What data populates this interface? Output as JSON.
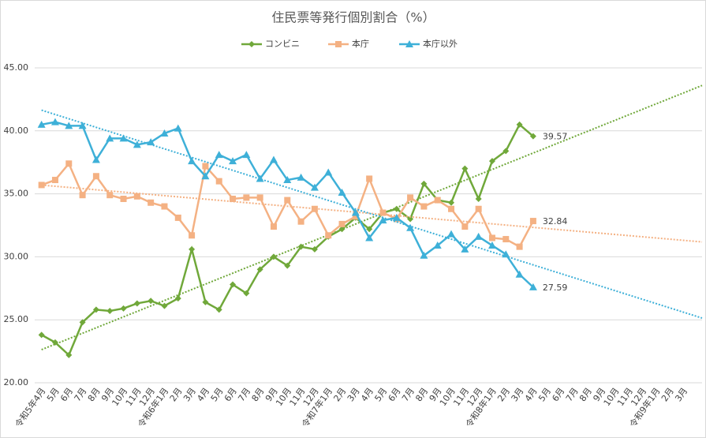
{
  "chart_data": {
    "type": "line",
    "title": "住民票等発行個別割合（%）",
    "categories": [
      "令和5年4月",
      "5月",
      "6月",
      "7月",
      "8月",
      "9月",
      "10月",
      "11月",
      "12月",
      "令和6年1月",
      "2月",
      "3月",
      "4月",
      "5月",
      "6月",
      "7月",
      "8月",
      "9月",
      "10月",
      "11月",
      "12月",
      "令和7年1月",
      "2月",
      "3月",
      "4月",
      "5月",
      "6月",
      "7月",
      "8月",
      "9月",
      "10月",
      "11月",
      "12月",
      "令和8年1月",
      "2月",
      "3月",
      "4月",
      "5月",
      "6月",
      "7月",
      "8月",
      "9月",
      "10月",
      "11月",
      "12月",
      "令和9年1月",
      "2月",
      "3月"
    ],
    "series": [
      {
        "name": "コンビニ",
        "color": "#70a83a",
        "marker": "diamond",
        "values": [
          23.8,
          23.2,
          22.2,
          24.8,
          25.8,
          25.7,
          25.9,
          26.3,
          26.5,
          26.1,
          26.7,
          30.6,
          26.4,
          25.8,
          27.8,
          27.1,
          29.0,
          30.0,
          29.3,
          30.8,
          30.6,
          31.6,
          32.2,
          33.1,
          32.2,
          33.5,
          33.8,
          33.0,
          35.8,
          34.5,
          34.3,
          37.0,
          34.6,
          37.6,
          38.4,
          40.5,
          39.57,
          null,
          null,
          null,
          null,
          null,
          null,
          null,
          null,
          null,
          null,
          null
        ]
      },
      {
        "name": "本庁",
        "color": "#f4b183",
        "marker": "square",
        "values": [
          35.7,
          36.1,
          37.4,
          34.9,
          36.4,
          34.9,
          34.6,
          34.8,
          34.3,
          34.0,
          33.1,
          31.7,
          37.2,
          36.0,
          34.6,
          34.7,
          34.7,
          32.4,
          34.5,
          32.8,
          33.8,
          31.7,
          32.6,
          33.2,
          36.2,
          33.5,
          33.0,
          34.7,
          34.0,
          34.5,
          33.8,
          32.4,
          33.8,
          31.5,
          31.4,
          30.8,
          32.84,
          null,
          null,
          null,
          null,
          null,
          null,
          null,
          null,
          null,
          null,
          null
        ]
      },
      {
        "name": "本庁以外",
        "color": "#3eb0d8",
        "marker": "triangle",
        "values": [
          40.5,
          40.7,
          40.4,
          40.4,
          37.7,
          39.4,
          39.4,
          38.9,
          39.1,
          39.8,
          40.2,
          37.6,
          36.4,
          38.1,
          37.6,
          38.1,
          36.2,
          37.7,
          36.1,
          36.3,
          35.5,
          36.7,
          35.1,
          33.5,
          31.5,
          32.9,
          33.1,
          32.3,
          30.1,
          30.9,
          31.8,
          30.6,
          31.6,
          30.9,
          30.2,
          28.6,
          27.59,
          null,
          null,
          null,
          null,
          null,
          null,
          null,
          null,
          null,
          null,
          null
        ]
      }
    ],
    "ylim": [
      20,
      45
    ],
    "yticks": [
      {
        "value": 20,
        "label": "20.00"
      },
      {
        "value": 25,
        "label": "25.00"
      },
      {
        "value": 30,
        "label": "30.00"
      },
      {
        "value": 35,
        "label": "35.00"
      },
      {
        "value": 40,
        "label": "40.00"
      },
      {
        "value": 45,
        "label": "45.00"
      }
    ],
    "grid": true,
    "trendline": true,
    "legend": "top"
  }
}
